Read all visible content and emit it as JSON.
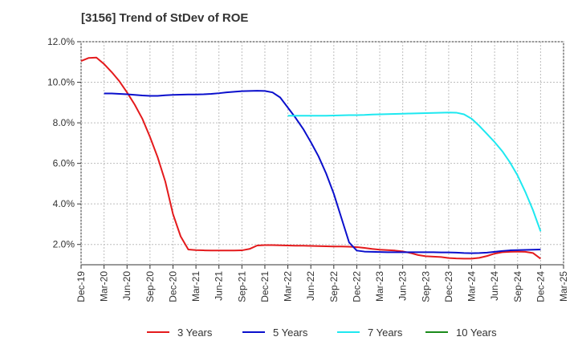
{
  "chart_data": {
    "type": "line",
    "title": "[3156]  Trend of StDev of ROE",
    "xlabel": "",
    "ylabel": "",
    "x_ticks": [
      "Dec-19",
      "Mar-20",
      "Jun-20",
      "Sep-20",
      "Dec-20",
      "Mar-21",
      "Jun-21",
      "Sep-21",
      "Dec-21",
      "Mar-22",
      "Jun-22",
      "Sep-22",
      "Dec-22",
      "Mar-23",
      "Jun-23",
      "Sep-23",
      "Dec-23",
      "Mar-24",
      "Jun-24",
      "Sep-24",
      "Dec-24",
      "Mar-25"
    ],
    "y_ticks": [
      "2.0%",
      "4.0%",
      "6.0%",
      "8.0%",
      "10.0%",
      "12.0%"
    ],
    "ylim": [
      1.0,
      12.0
    ],
    "grid": true,
    "legend_position": "bottom",
    "series": [
      {
        "name": "3 Years",
        "color": "#e41a1c",
        "points": [
          [
            "Dec-19",
            11.05
          ],
          [
            "Jan-20",
            11.2
          ],
          [
            "Feb-20",
            11.22
          ],
          [
            "Mar-20",
            10.9
          ],
          [
            "Apr-20",
            10.5
          ],
          [
            "May-20",
            10.05
          ],
          [
            "Jun-20",
            9.5
          ],
          [
            "Jul-20",
            8.9
          ],
          [
            "Aug-20",
            8.2
          ],
          [
            "Sep-20",
            7.3
          ],
          [
            "Oct-20",
            6.3
          ],
          [
            "Nov-20",
            5.1
          ],
          [
            "Dec-20",
            3.5
          ],
          [
            "Jan-21",
            2.4
          ],
          [
            "Feb-21",
            1.75
          ],
          [
            "Mar-21",
            1.72
          ],
          [
            "Apr-21",
            1.71
          ],
          [
            "May-21",
            1.7
          ],
          [
            "Jun-21",
            1.7
          ],
          [
            "Jul-21",
            1.7
          ],
          [
            "Aug-21",
            1.7
          ],
          [
            "Sep-21",
            1.71
          ],
          [
            "Oct-21",
            1.78
          ],
          [
            "Nov-21",
            1.95
          ],
          [
            "Dec-21",
            1.97
          ],
          [
            "Jan-22",
            1.97
          ],
          [
            "Feb-22",
            1.96
          ],
          [
            "Mar-22",
            1.95
          ],
          [
            "Apr-22",
            1.94
          ],
          [
            "May-22",
            1.94
          ],
          [
            "Jun-22",
            1.93
          ],
          [
            "Jul-22",
            1.92
          ],
          [
            "Aug-22",
            1.91
          ],
          [
            "Sep-22",
            1.9
          ],
          [
            "Oct-22",
            1.9
          ],
          [
            "Nov-22",
            1.89
          ],
          [
            "Dec-22",
            1.87
          ],
          [
            "Jan-23",
            1.83
          ],
          [
            "Feb-23",
            1.78
          ],
          [
            "Mar-23",
            1.74
          ],
          [
            "Apr-23",
            1.72
          ],
          [
            "May-23",
            1.7
          ],
          [
            "Jun-23",
            1.66
          ],
          [
            "Jul-23",
            1.58
          ],
          [
            "Aug-23",
            1.48
          ],
          [
            "Sep-23",
            1.42
          ],
          [
            "Oct-23",
            1.4
          ],
          [
            "Nov-23",
            1.38
          ],
          [
            "Dec-23",
            1.33
          ],
          [
            "Jan-24",
            1.31
          ],
          [
            "Feb-24",
            1.3
          ],
          [
            "Mar-24",
            1.3
          ],
          [
            "Apr-24",
            1.34
          ],
          [
            "May-24",
            1.43
          ],
          [
            "Jun-24",
            1.55
          ],
          [
            "Jul-24",
            1.62
          ],
          [
            "Aug-24",
            1.64
          ],
          [
            "Sep-24",
            1.65
          ],
          [
            "Oct-24",
            1.64
          ],
          [
            "Nov-24",
            1.58
          ],
          [
            "Dec-24",
            1.3
          ]
        ]
      },
      {
        "name": "5 Years",
        "color": "#0a0fcc",
        "points": [
          [
            "Mar-20",
            9.45
          ],
          [
            "Apr-20",
            9.45
          ],
          [
            "May-20",
            9.43
          ],
          [
            "Jun-20",
            9.41
          ],
          [
            "Jul-20",
            9.38
          ],
          [
            "Aug-20",
            9.35
          ],
          [
            "Sep-20",
            9.33
          ],
          [
            "Oct-20",
            9.33
          ],
          [
            "Nov-20",
            9.36
          ],
          [
            "Dec-20",
            9.38
          ],
          [
            "Jan-21",
            9.39
          ],
          [
            "Feb-21",
            9.4
          ],
          [
            "Mar-21",
            9.4
          ],
          [
            "Apr-21",
            9.41
          ],
          [
            "May-21",
            9.43
          ],
          [
            "Jun-21",
            9.46
          ],
          [
            "Jul-21",
            9.5
          ],
          [
            "Aug-21",
            9.53
          ],
          [
            "Sep-21",
            9.56
          ],
          [
            "Oct-21",
            9.57
          ],
          [
            "Nov-21",
            9.58
          ],
          [
            "Dec-21",
            9.57
          ],
          [
            "Jan-22",
            9.5
          ],
          [
            "Feb-22",
            9.25
          ],
          [
            "Mar-22",
            8.75
          ],
          [
            "Apr-22",
            8.25
          ],
          [
            "May-22",
            7.7
          ],
          [
            "Jun-22",
            7.05
          ],
          [
            "Jul-22",
            6.35
          ],
          [
            "Aug-22",
            5.5
          ],
          [
            "Sep-22",
            4.5
          ],
          [
            "Oct-22",
            3.3
          ],
          [
            "Nov-22",
            2.1
          ],
          [
            "Dec-22",
            1.7
          ],
          [
            "Jan-23",
            1.65
          ],
          [
            "Feb-23",
            1.64
          ],
          [
            "Mar-23",
            1.63
          ],
          [
            "Apr-23",
            1.62
          ],
          [
            "May-23",
            1.62
          ],
          [
            "Jun-23",
            1.62
          ],
          [
            "Jul-23",
            1.62
          ],
          [
            "Aug-23",
            1.62
          ],
          [
            "Sep-23",
            1.62
          ],
          [
            "Oct-23",
            1.62
          ],
          [
            "Nov-23",
            1.61
          ],
          [
            "Dec-23",
            1.61
          ],
          [
            "Jan-24",
            1.6
          ],
          [
            "Feb-24",
            1.58
          ],
          [
            "Mar-24",
            1.57
          ],
          [
            "Apr-24",
            1.58
          ],
          [
            "May-24",
            1.6
          ],
          [
            "Jun-24",
            1.64
          ],
          [
            "Jul-24",
            1.68
          ],
          [
            "Aug-24",
            1.71
          ],
          [
            "Sep-24",
            1.72
          ],
          [
            "Oct-24",
            1.73
          ],
          [
            "Nov-24",
            1.74
          ],
          [
            "Dec-24",
            1.75
          ]
        ]
      },
      {
        "name": "7 Years",
        "color": "#1ee8f0",
        "points": [
          [
            "Mar-22",
            8.35
          ],
          [
            "Apr-22",
            8.35
          ],
          [
            "May-22",
            8.35
          ],
          [
            "Jun-22",
            8.35
          ],
          [
            "Jul-22",
            8.35
          ],
          [
            "Aug-22",
            8.35
          ],
          [
            "Sep-22",
            8.36
          ],
          [
            "Oct-22",
            8.37
          ],
          [
            "Nov-22",
            8.38
          ],
          [
            "Dec-22",
            8.38
          ],
          [
            "Jan-23",
            8.39
          ],
          [
            "Feb-23",
            8.41
          ],
          [
            "Mar-23",
            8.42
          ],
          [
            "Apr-23",
            8.43
          ],
          [
            "May-23",
            8.44
          ],
          [
            "Jun-23",
            8.45
          ],
          [
            "Jul-23",
            8.46
          ],
          [
            "Aug-23",
            8.47
          ],
          [
            "Sep-23",
            8.48
          ],
          [
            "Oct-23",
            8.49
          ],
          [
            "Nov-23",
            8.5
          ],
          [
            "Dec-23",
            8.51
          ],
          [
            "Jan-24",
            8.5
          ],
          [
            "Feb-24",
            8.42
          ],
          [
            "Mar-24",
            8.2
          ],
          [
            "Apr-24",
            7.85
          ],
          [
            "May-24",
            7.45
          ],
          [
            "Jun-24",
            7.05
          ],
          [
            "Jul-24",
            6.6
          ],
          [
            "Aug-24",
            6.05
          ],
          [
            "Sep-24",
            5.4
          ],
          [
            "Oct-24",
            4.6
          ],
          [
            "Nov-24",
            3.7
          ],
          [
            "Dec-24",
            2.65
          ]
        ]
      },
      {
        "name": "10 Years",
        "color": "#1a8a1a",
        "points": []
      }
    ]
  }
}
